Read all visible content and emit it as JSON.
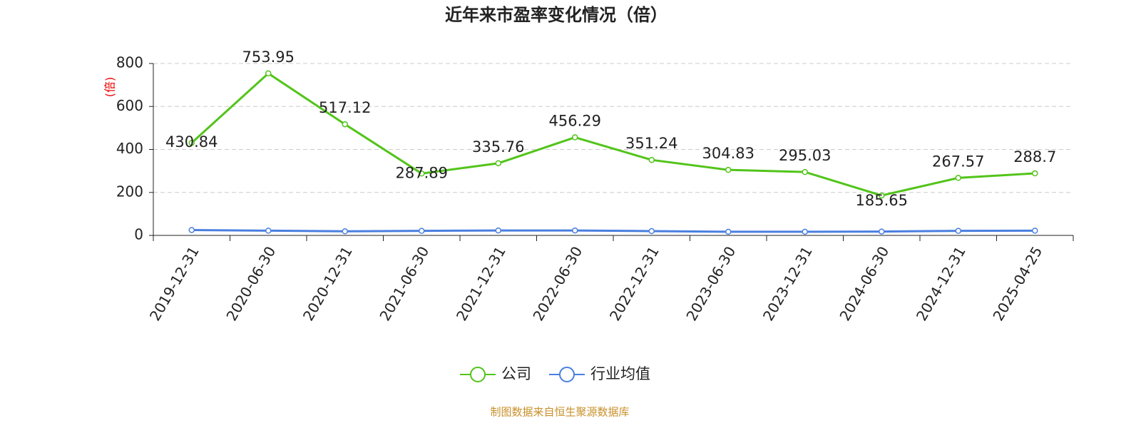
{
  "chart_data": {
    "type": "line",
    "title": "近年来市盈率变化情况（倍）",
    "y_label": "(倍)",
    "source": "制图数据来自恒生聚源数据库",
    "categories": [
      "2019-12-31",
      "2020-06-30",
      "2020-12-31",
      "2021-06-30",
      "2021-12-31",
      "2022-06-30",
      "2022-12-31",
      "2023-06-30",
      "2023-12-31",
      "2024-06-30",
      "2024-12-31",
      "2025-04-25"
    ],
    "series": [
      {
        "name": "公司",
        "color": "#52c41a",
        "values": [
          430.84,
          753.95,
          517.12,
          287.89,
          335.76,
          456.29,
          351.24,
          304.83,
          295.03,
          185.65,
          267.57,
          288.7
        ],
        "show_labels": true
      },
      {
        "name": "行业均值",
        "color": "#4a7fe0",
        "values": [
          25,
          22,
          19,
          21,
          23,
          23,
          20,
          17,
          17,
          18,
          21,
          22
        ],
        "show_labels": false
      }
    ],
    "ylim": [
      0,
      800
    ],
    "yticks": [
      0,
      200,
      400,
      600,
      800
    ],
    "grid": true
  }
}
